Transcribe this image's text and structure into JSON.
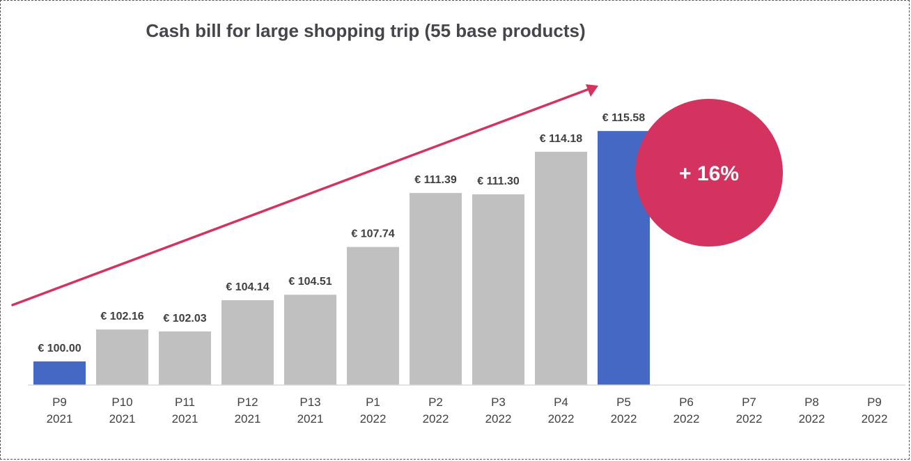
{
  "chart_data": {
    "type": "bar",
    "title": "Cash bill for large shopping trip (55 base products)",
    "categories": [
      [
        "P9",
        "2021"
      ],
      [
        "P10",
        "2021"
      ],
      [
        "P11",
        "2021"
      ],
      [
        "P12",
        "2021"
      ],
      [
        "P13",
        "2021"
      ],
      [
        "P1",
        "2022"
      ],
      [
        "P2",
        "2022"
      ],
      [
        "P3",
        "2022"
      ],
      [
        "P4",
        "2022"
      ],
      [
        "P5",
        "2022"
      ],
      [
        "P6",
        "2022"
      ],
      [
        "P7",
        "2022"
      ],
      [
        "P8",
        "2022"
      ],
      [
        "P9",
        "2022"
      ]
    ],
    "values": [
      100.0,
      102.16,
      102.03,
      104.14,
      104.51,
      107.74,
      111.39,
      111.3,
      114.18,
      115.58,
      null,
      null,
      null,
      null
    ],
    "value_labels": [
      "€ 100.00",
      "€ 102.16",
      "€ 102.03",
      "€ 104.14",
      "€ 104.51",
      "€ 107.74",
      "€ 111.39",
      "€ 111.30",
      "€ 114.18",
      "€ 115.58",
      "",
      "",
      "",
      ""
    ],
    "highlighted": [
      0,
      9
    ],
    "ylim": [
      98.4,
      116.2
    ],
    "xlabel": "",
    "ylabel": "",
    "grid": false,
    "legend": "none",
    "annotation": {
      "text": "+ 16%",
      "shape": "circle"
    },
    "trend_arrow": true,
    "colors": {
      "bar": "#c0c0c0",
      "highlight_bar": "#4468c4",
      "accent": "#d3335e",
      "text": "#404040",
      "title": "#44464b",
      "axis": "#d9d9d9"
    }
  }
}
